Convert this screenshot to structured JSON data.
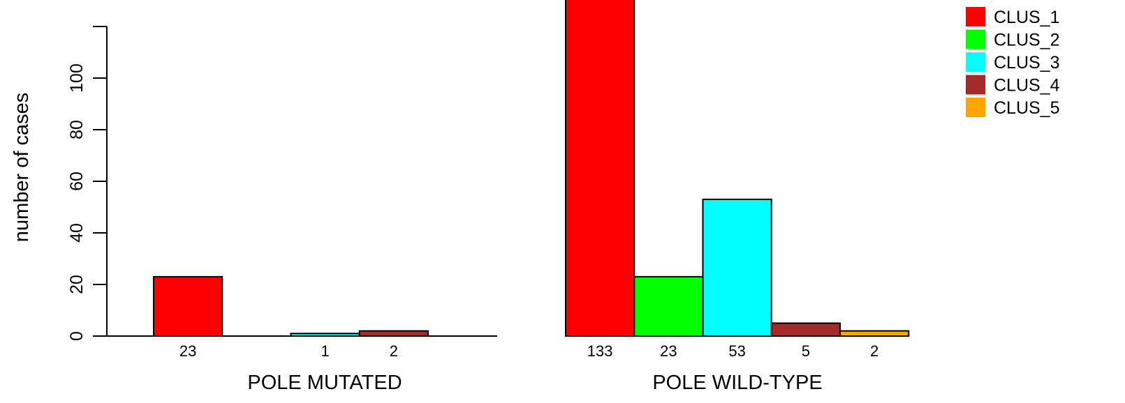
{
  "chart_data": {
    "type": "bar",
    "ylabel": "number of cases",
    "ylim": [
      0,
      120
    ],
    "yticks": [
      0,
      20,
      40,
      60,
      80,
      100
    ],
    "categories": [
      "CLUS_1",
      "CLUS_2",
      "CLUS_3",
      "CLUS_4",
      "CLUS_5"
    ],
    "colors": {
      "CLUS_1": "#ff0000",
      "CLUS_2": "#00ff00",
      "CLUS_3": "#00ffff",
      "CLUS_4": "#a52a2a",
      "CLUS_5": "#ffa500"
    },
    "groups": [
      {
        "name": "POLE MUTATED",
        "values": [
          23,
          0,
          1,
          2,
          0
        ],
        "value_labels": [
          "23",
          "",
          "1",
          "2",
          ""
        ]
      },
      {
        "name": "POLE WILD-TYPE",
        "values": [
          133,
          23,
          53,
          5,
          2
        ],
        "value_labels": [
          "133",
          "23",
          "53",
          "5",
          "2"
        ]
      }
    ],
    "legend": {
      "placement": "top-right",
      "entries": [
        "CLUS_1",
        "CLUS_2",
        "CLUS_3",
        "CLUS_4",
        "CLUS_5"
      ]
    }
  }
}
